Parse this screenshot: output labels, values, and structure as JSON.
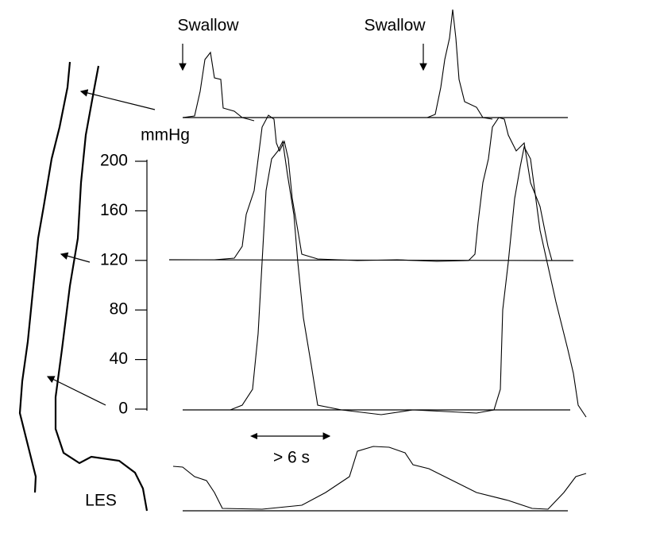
{
  "swallows": [
    "Swallow",
    "Swallow"
  ],
  "axis": {
    "unit": "mmHg",
    "ticks": [
      200,
      160,
      120,
      80,
      40,
      0
    ]
  },
  "duration": "> 6 s",
  "sphincter": "LES"
}
